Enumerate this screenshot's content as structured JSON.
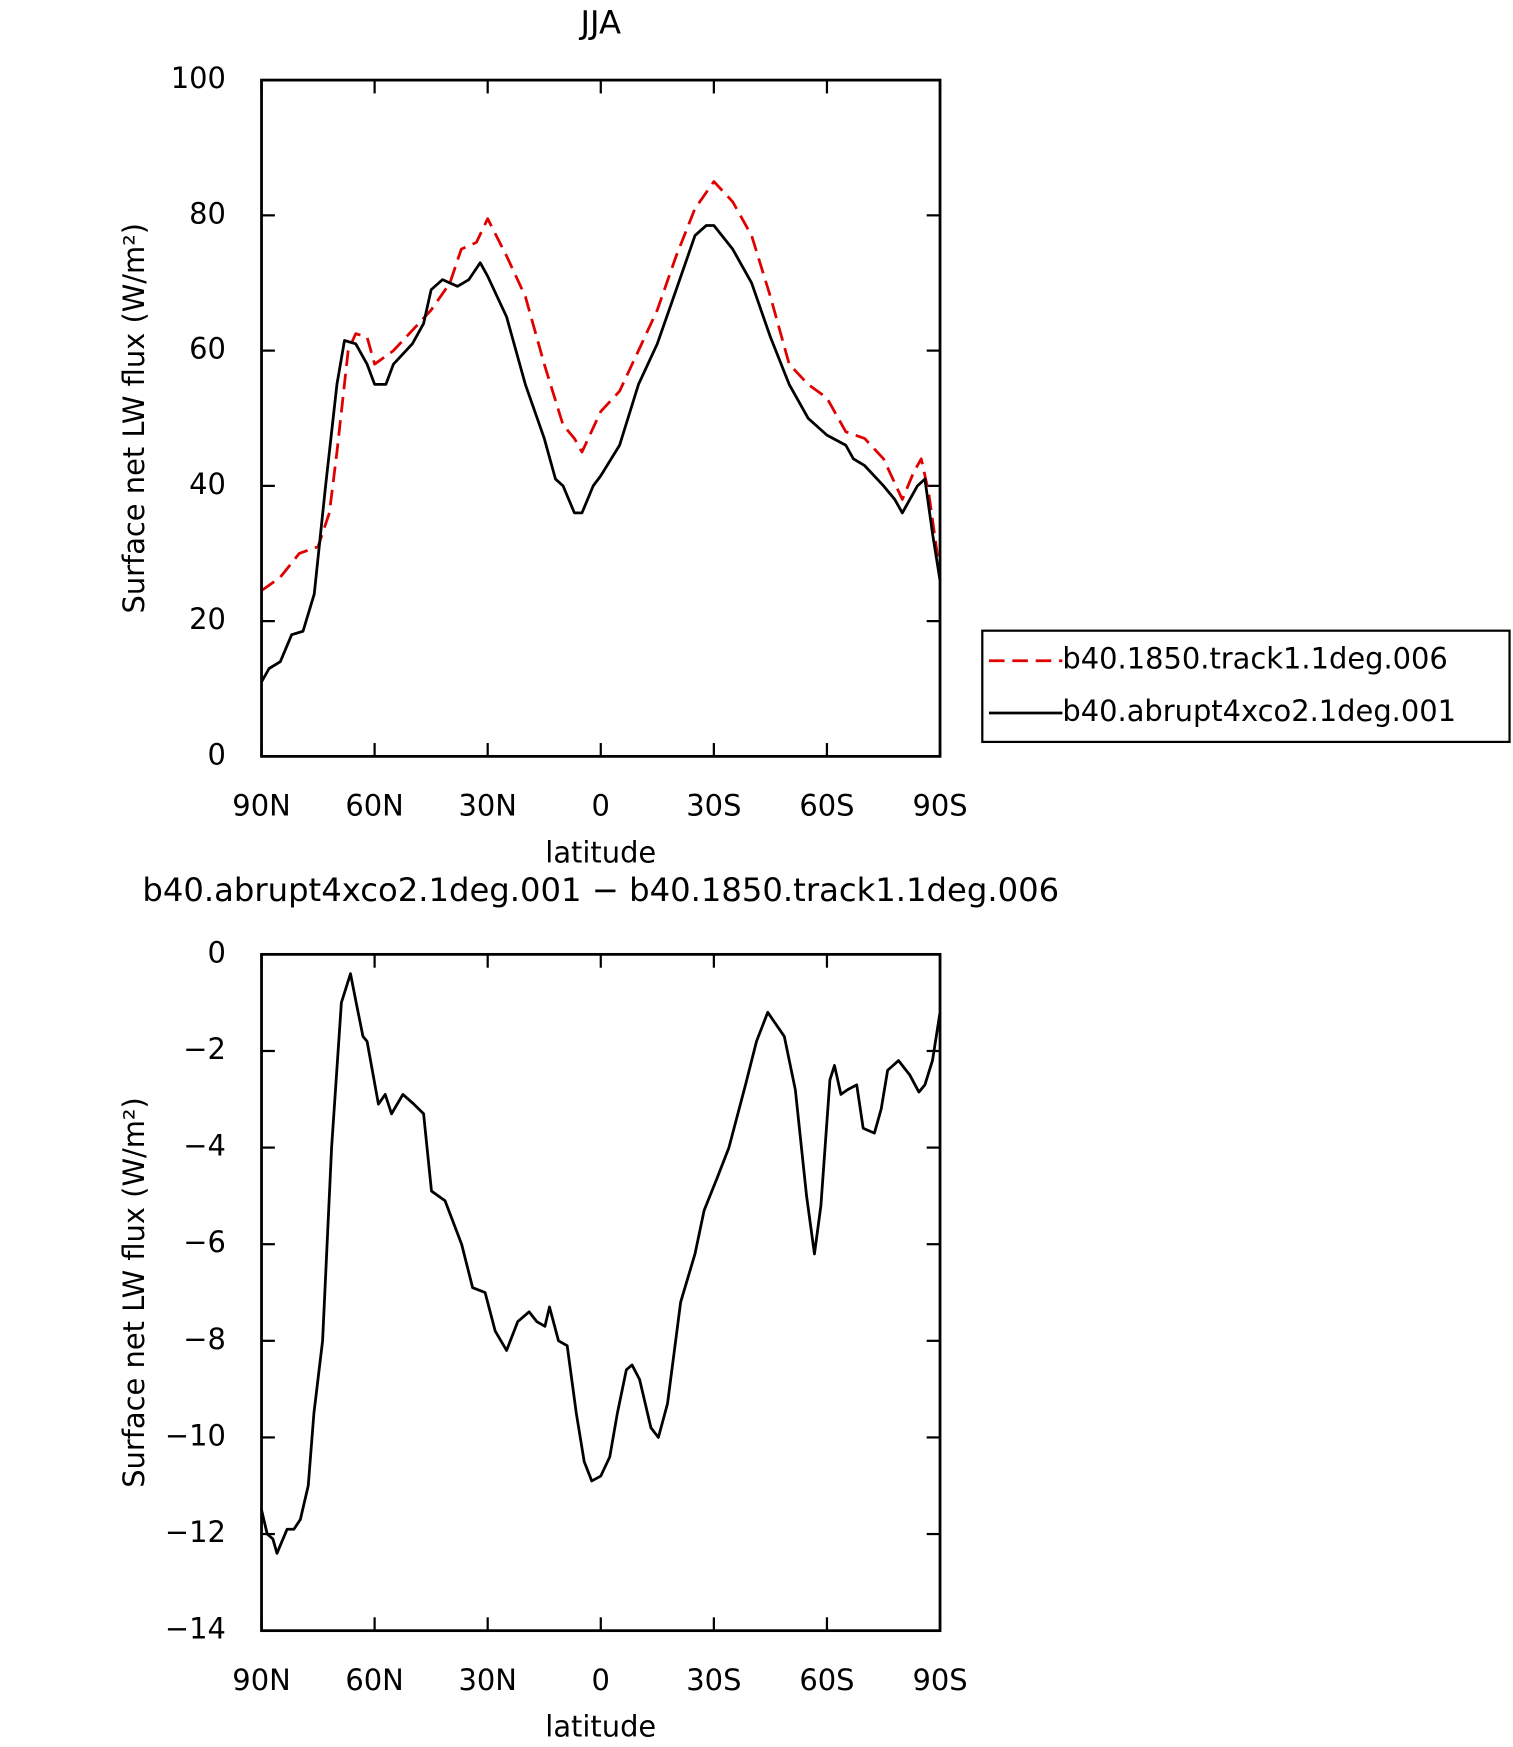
{
  "chart_data": [
    {
      "type": "line",
      "title": "JJA",
      "xlabel": "latitude",
      "ylabel": "Surface net LW flux (W/m²)",
      "xlim": [
        90,
        -90
      ],
      "xticks": [
        {
          "value": 90,
          "label": "90N"
        },
        {
          "value": 60,
          "label": "60N"
        },
        {
          "value": 30,
          "label": "30N"
        },
        0,
        {
          "value": -30,
          "label": "30S"
        },
        {
          "value": -60,
          "label": "60S"
        },
        {
          "value": -90,
          "label": "90S"
        }
      ],
      "ylim": [
        0,
        100
      ],
      "yticks": [
        0,
        20,
        40,
        60,
        80,
        100
      ],
      "legend": "right",
      "series": [
        {
          "name": "b40.1850.track1.1deg.006",
          "color": "#e00000",
          "line_style": "dashed",
          "x": [
            90,
            85,
            80,
            75,
            72,
            70,
            67,
            65,
            62,
            60,
            55,
            50,
            45,
            40,
            37,
            33,
            30,
            25,
            20,
            15,
            10,
            7,
            5,
            0,
            -5,
            -10,
            -15,
            -20,
            -25,
            -30,
            -35,
            -40,
            -45,
            -50,
            -55,
            -60,
            -65,
            -70,
            -75,
            -80,
            -83,
            -85,
            -87,
            -90
          ],
          "values": [
            24.5,
            26.5,
            30,
            31,
            36,
            45,
            60,
            62.5,
            62,
            58,
            60,
            63,
            66,
            70,
            75,
            76,
            79.5,
            74,
            68,
            58,
            49,
            47,
            45,
            51,
            54,
            60,
            66,
            74,
            81,
            85,
            82,
            77,
            68,
            58,
            55,
            53,
            48,
            47,
            44,
            38,
            42,
            44,
            39,
            27
          ]
        },
        {
          "name": "b40.abrupt4xco2.1deg.001",
          "color": "#000000",
          "line_style": "solid",
          "x": [
            90,
            88,
            85,
            82,
            79,
            76,
            73,
            70,
            68,
            65,
            62,
            60,
            57,
            55,
            50,
            47,
            45,
            42,
            40,
            38,
            35,
            32,
            30,
            25,
            20,
            15,
            12,
            10,
            7,
            5,
            2,
            0,
            -5,
            -10,
            -15,
            -20,
            -25,
            -28,
            -30,
            -35,
            -40,
            -45,
            -50,
            -55,
            -60,
            -65,
            -67,
            -70,
            -75,
            -78,
            -80,
            -84,
            -86,
            -88,
            -90
          ],
          "values": [
            11,
            13,
            14,
            18,
            18.5,
            24,
            40,
            55,
            61.5,
            61,
            58,
            55,
            55,
            58,
            61,
            64,
            69,
            70.5,
            70,
            69.5,
            70.5,
            73,
            71,
            65,
            55,
            47,
            41,
            40,
            36,
            36,
            40,
            41.5,
            46,
            55,
            61,
            69,
            77,
            78.5,
            78.5,
            75,
            70,
            62,
            55,
            50,
            47.5,
            46,
            44,
            43,
            40,
            38,
            36,
            40,
            41,
            33,
            26
          ]
        }
      ]
    },
    {
      "type": "line",
      "title": "b40.abrupt4xco2.1deg.001 − b40.1850.track1.1deg.006",
      "xlabel": "latitude",
      "ylabel": "Surface net LW flux (W/m²)",
      "xlim": [
        90,
        -90
      ],
      "xticks": [
        {
          "value": 90,
          "label": "90N"
        },
        {
          "value": 60,
          "label": "60N"
        },
        {
          "value": 30,
          "label": "30N"
        },
        0,
        {
          "value": -30,
          "label": "30S"
        },
        {
          "value": -60,
          "label": "60S"
        },
        {
          "value": -90,
          "label": "90S"
        }
      ],
      "ylim": [
        -14,
        0
      ],
      "yticks": [
        {
          "value": -14,
          "label": "−14"
        },
        {
          "value": -12,
          "label": "−12"
        },
        {
          "value": -10,
          "label": "−10"
        },
        {
          "value": -8,
          "label": "−8"
        },
        {
          "value": -6,
          "label": "−6"
        },
        {
          "value": -4,
          "label": "−4"
        },
        {
          "value": -2,
          "label": "−2"
        },
        0
      ],
      "series": [
        {
          "color": "#000000",
          "line_style": "solid",
          "x": [
            90,
            88.5,
            87,
            85.9,
            83.2,
            81.4,
            79.7,
            77.6,
            76.1,
            73.8,
            71.4,
            68.8,
            66.4,
            64.9,
            63.1,
            62,
            59,
            57.2,
            55.5,
            52.5,
            49.6,
            47,
            44.9,
            41.3,
            36.9,
            34,
            30.7,
            28,
            25,
            22,
            19,
            17,
            14.8,
            13.6,
            11.2,
            8.9,
            6.5,
            4.4,
            2.4,
            0,
            -2.4,
            -4.4,
            -6.8,
            -8.3,
            -10.3,
            -13.3,
            -15.3,
            -17.7,
            -21.2,
            -25,
            -27.4,
            -31,
            -34,
            -38.4,
            -41.3,
            -44.3,
            -48.7,
            -51.6,
            -54.6,
            -56.7,
            -58.4,
            -60.8,
            -62,
            -63.7,
            -65.5,
            -67.9,
            -69.6,
            -72.6,
            -74.4,
            -76.1,
            -79,
            -82,
            -84.4,
            -86,
            -88,
            -90
          ],
          "values": [
            -11.5,
            -12,
            -12.1,
            -12.4,
            -11.9,
            -11.9,
            -11.7,
            -11,
            -9.5,
            -8,
            -4,
            -1,
            -0.4,
            -1,
            -1.7,
            -1.8,
            -3.1,
            -2.9,
            -3.3,
            -2.9,
            -3.1,
            -3.3,
            -4.9,
            -5.1,
            -6,
            -6.9,
            -7,
            -7.8,
            -8.2,
            -7.6,
            -7.4,
            -7.6,
            -7.7,
            -7.3,
            -8,
            -8.1,
            -9.5,
            -10.5,
            -10.9,
            -10.8,
            -10.4,
            -9.5,
            -8.6,
            -8.5,
            -8.8,
            -9.8,
            -10,
            -9.3,
            -7.2,
            -6.2,
            -5.3,
            -4.6,
            -4,
            -2.7,
            -1.8,
            -1.2,
            -1.7,
            -2.8,
            -5,
            -6.2,
            -5.2,
            -2.6,
            -2.3,
            -2.9,
            -2.8,
            -2.7,
            -3.6,
            -3.7,
            -3.2,
            -2.4,
            -2.2,
            -2.5,
            -2.85,
            -2.7,
            -2.2,
            -1.2
          ]
        }
      ]
    }
  ]
}
